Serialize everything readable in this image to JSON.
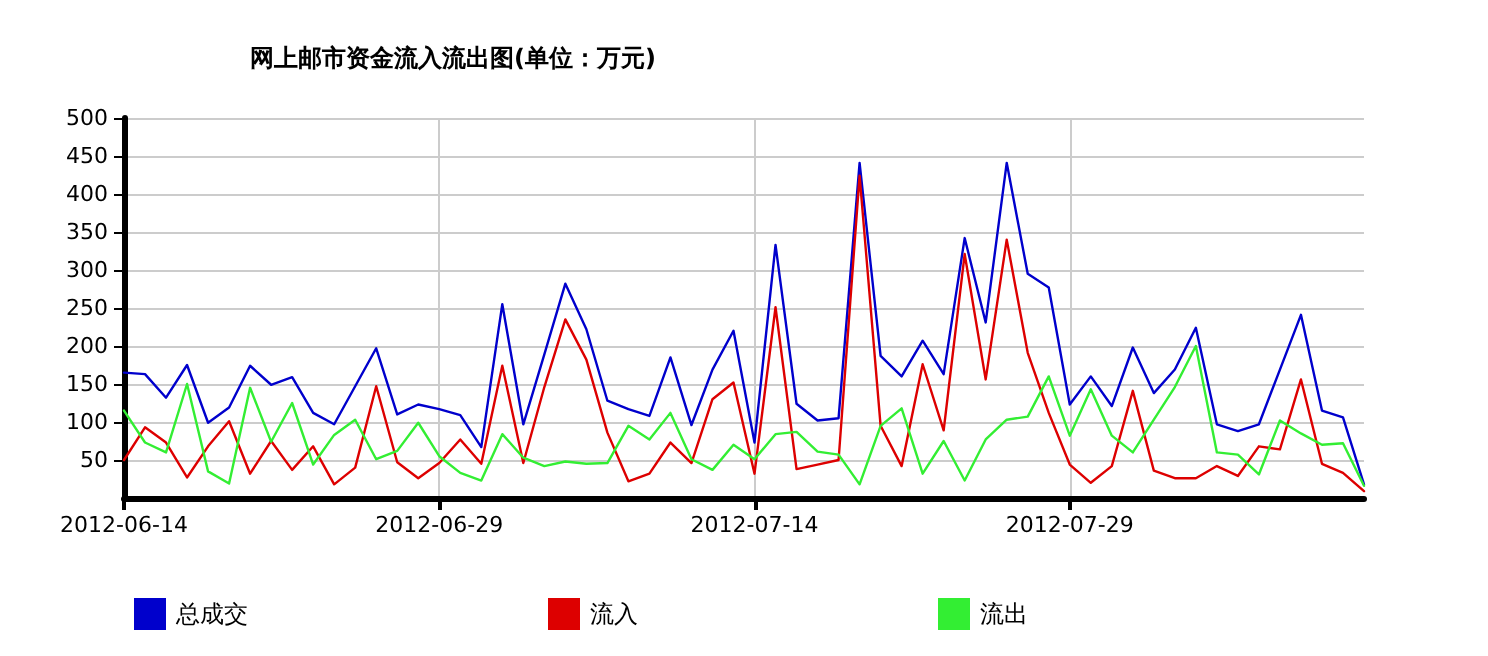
{
  "chart_data": {
    "type": "line",
    "title": "网上邮市资金流入流出图(单位：万元)",
    "x": [
      "2012-06-14",
      "2012-06-15",
      "2012-06-16",
      "2012-06-17",
      "2012-06-18",
      "2012-06-19",
      "2012-06-20",
      "2012-06-21",
      "2012-06-22",
      "2012-06-23",
      "2012-06-24",
      "2012-06-25",
      "2012-06-26",
      "2012-06-27",
      "2012-06-28",
      "2012-06-29",
      "2012-06-30",
      "2012-07-01",
      "2012-07-02",
      "2012-07-03",
      "2012-07-04",
      "2012-07-05",
      "2012-07-06",
      "2012-07-07",
      "2012-07-08",
      "2012-07-09",
      "2012-07-10",
      "2012-07-11",
      "2012-07-12",
      "2012-07-13",
      "2012-07-14",
      "2012-07-15",
      "2012-07-16",
      "2012-07-17",
      "2012-07-18",
      "2012-07-19",
      "2012-07-20",
      "2012-07-21",
      "2012-07-22",
      "2012-07-23",
      "2012-07-24",
      "2012-07-25",
      "2012-07-26",
      "2012-07-27",
      "2012-07-28",
      "2012-07-29",
      "2012-07-30",
      "2012-07-31",
      "2012-08-01",
      "2012-08-02",
      "2012-08-03",
      "2012-08-04",
      "2012-08-05",
      "2012-08-06",
      "2012-08-07",
      "2012-08-08",
      "2012-08-09",
      "2012-08-10",
      "2012-08-11",
      "2012-08-12"
    ],
    "series": [
      {
        "name": "总成交",
        "color": "#0000cc",
        "values": [
          165,
          163,
          132,
          175,
          99,
          119,
          174,
          149,
          159,
          112,
          97,
          147,
          197,
          110,
          123,
          117,
          109,
          67,
          255,
          97,
          189,
          282,
          222,
          128,
          117,
          108,
          185,
          96,
          169,
          220,
          73,
          333,
          124,
          102,
          105,
          441,
          187,
          160,
          207,
          163,
          342,
          231,
          441,
          295,
          277,
          123,
          160,
          121,
          198,
          138,
          169,
          224,
          97,
          88,
          97,
          169,
          241,
          115,
          106,
          18
        ]
      },
      {
        "name": "流入",
        "color": "#dd0000",
        "values": [
          50,
          93,
          73,
          27,
          68,
          101,
          32,
          75,
          37,
          68,
          18,
          40,
          147,
          47,
          26,
          46,
          77,
          45,
          174,
          46,
          146,
          235,
          182,
          86,
          22,
          32,
          73,
          46,
          130,
          152,
          32,
          251,
          38,
          44,
          50,
          424,
          95,
          42,
          176,
          89,
          321,
          156,
          340,
          191,
          112,
          44,
          20,
          42,
          141,
          36,
          26,
          26,
          42,
          29,
          68,
          64,
          156,
          45,
          33,
          9
        ]
      },
      {
        "name": "流出",
        "color": "#33ee33",
        "values": [
          115,
          73,
          60,
          150,
          35,
          19,
          145,
          74,
          125,
          44,
          83,
          103,
          51,
          62,
          99,
          55,
          33,
          23,
          84,
          53,
          42,
          48,
          45,
          46,
          95,
          77,
          112,
          51,
          37,
          70,
          51,
          84,
          87,
          61,
          57,
          18,
          95,
          118,
          32,
          75,
          23,
          77,
          103,
          107,
          160,
          82,
          143,
          82,
          60,
          103,
          146,
          200,
          60,
          57,
          31,
          102,
          85,
          70,
          72,
          16
        ]
      }
    ],
    "xlim": [
      "2012-06-14",
      "2012-08-12"
    ],
    "xticks": [
      "2012-06-14",
      "2012-06-29",
      "2012-07-14",
      "2012-07-29"
    ],
    "ylim": [
      0,
      500
    ],
    "yticks": [
      50,
      100,
      150,
      200,
      250,
      300,
      350,
      400,
      450,
      500
    ],
    "grid": true,
    "legend": "bottom left",
    "marker": "none",
    "line_style": "solid"
  }
}
